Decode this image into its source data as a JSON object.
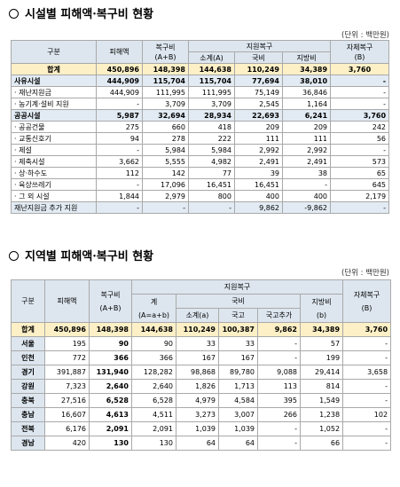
{
  "section1": {
    "title": "시설별 피해액·복구비 현황",
    "unit": "(단위 : 백만원)",
    "headers": {
      "category": "구분",
      "damage": "피해액",
      "recovery": "복구비",
      "recovery_sub": "(A+B)",
      "support": "지원복구",
      "subtotal": "소계(A)",
      "national": "국비",
      "local": "지방비",
      "self": "자체복구",
      "self_sub": "(B)"
    },
    "rows": [
      {
        "label": "합계",
        "cells": [
          "450,896",
          "148,398",
          "144,638",
          "110,249",
          "34,389",
          "3,760"
        ]
      },
      {
        "label": "사유시설",
        "cells": [
          "444,909",
          "115,704",
          "115,704",
          "77,694",
          "38,010",
          "-"
        ]
      },
      {
        "label": "· 재난지원금",
        "cells": [
          "444,909",
          "111,995",
          "111,995",
          "75,149",
          "36,846",
          "-"
        ]
      },
      {
        "label": "· 농기계·설비 지원",
        "cells": [
          "-",
          "3,709",
          "3,709",
          "2,545",
          "1,164",
          "-"
        ]
      },
      {
        "label": "공공시설",
        "cells": [
          "5,987",
          "32,694",
          "28,934",
          "22,693",
          "6,241",
          "3,760"
        ]
      },
      {
        "label": "· 공공건물",
        "cells": [
          "275",
          "660",
          "418",
          "209",
          "209",
          "242"
        ]
      },
      {
        "label": "· 교통신호기",
        "cells": [
          "94",
          "278",
          "222",
          "111",
          "111",
          "56"
        ]
      },
      {
        "label": "· 제설",
        "cells": [
          "-",
          "5,984",
          "5,984",
          "2,992",
          "2,992",
          "-"
        ]
      },
      {
        "label": "· 제축시설",
        "cells": [
          "3,662",
          "5,555",
          "4,982",
          "2,491",
          "2,491",
          "573"
        ]
      },
      {
        "label": "· 상·하수도",
        "cells": [
          "112",
          "142",
          "77",
          "39",
          "38",
          "65"
        ]
      },
      {
        "label": "· 육상쓰레기",
        "cells": [
          "-",
          "17,096",
          "16,451",
          "16,451",
          "-",
          "645"
        ]
      },
      {
        "label": "· 그 외 시설",
        "cells": [
          "1,844",
          "2,979",
          "800",
          "400",
          "400",
          "2,179"
        ]
      },
      {
        "label": "재난지원금 추가 지원",
        "cells": [
          "-",
          "-",
          "-",
          "9,862",
          "-9,862",
          "-"
        ]
      }
    ]
  },
  "section2": {
    "title": "지역별 피해액·복구비 현황",
    "unit": "(단위 : 백만원)",
    "headers": {
      "category": "구분",
      "damage": "피해액",
      "recovery": "복구비",
      "recovery_sub": "(A+B)",
      "support": "지원복구",
      "total": "계",
      "total_sub": "(A=a+b)",
      "national": "국비",
      "subtotal": "소계(a)",
      "treasury": "국고",
      "treasury_extra": "국고추가",
      "local": "지방비",
      "local_sub": "(b)",
      "self": "자체복구",
      "self_sub": "(B)"
    },
    "rows": [
      {
        "label": "합계",
        "cells": [
          "450,896",
          "148,398",
          "144,638",
          "110,249",
          "100,387",
          "9,862",
          "34,389",
          "3,760"
        ]
      },
      {
        "label": "서울",
        "cells": [
          "195",
          "90",
          "90",
          "33",
          "33",
          "-",
          "57",
          "-"
        ]
      },
      {
        "label": "인천",
        "cells": [
          "772",
          "366",
          "366",
          "167",
          "167",
          "-",
          "199",
          "-"
        ]
      },
      {
        "label": "경기",
        "cells": [
          "391,887",
          "131,940",
          "128,282",
          "98,868",
          "89,780",
          "9,088",
          "29,414",
          "3,658"
        ]
      },
      {
        "label": "강원",
        "cells": [
          "7,323",
          "2,640",
          "2,640",
          "1,826",
          "1,713",
          "113",
          "814",
          "-"
        ]
      },
      {
        "label": "충북",
        "cells": [
          "27,516",
          "6,528",
          "6,528",
          "4,979",
          "4,584",
          "395",
          "1,549",
          "-"
        ]
      },
      {
        "label": "충남",
        "cells": [
          "16,607",
          "4,613",
          "4,511",
          "3,273",
          "3,007",
          "266",
          "1,238",
          "102"
        ]
      },
      {
        "label": "전북",
        "cells": [
          "6,176",
          "2,091",
          "2,091",
          "1,039",
          "1,039",
          "-",
          "1,052",
          "-"
        ]
      },
      {
        "label": "경남",
        "cells": [
          "420",
          "130",
          "130",
          "64",
          "64",
          "-",
          "66",
          "-"
        ]
      }
    ]
  }
}
